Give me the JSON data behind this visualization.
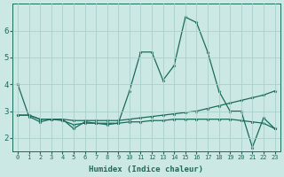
{
  "xlabel": "Humidex (Indice chaleur)",
  "background_color": "#cce8e4",
  "grid_color": "#aacfcb",
  "line_color": "#1a6b5a",
  "x": [
    0,
    1,
    2,
    3,
    4,
    5,
    6,
    7,
    8,
    9,
    10,
    11,
    12,
    13,
    14,
    15,
    16,
    17,
    18,
    19,
    20,
    21,
    22,
    23
  ],
  "series": [
    [
      4.0,
      2.8,
      2.6,
      2.7,
      2.7,
      2.35,
      2.6,
      2.55,
      2.5,
      2.55,
      3.75,
      5.2,
      5.2,
      4.15,
      4.7,
      6.5,
      6.3,
      5.2,
      3.75,
      3.0,
      3.0,
      1.65,
      2.75,
      2.35
    ],
    [
      2.85,
      2.85,
      2.7,
      2.7,
      2.7,
      2.65,
      2.65,
      2.65,
      2.65,
      2.65,
      2.7,
      2.75,
      2.8,
      2.85,
      2.9,
      2.95,
      3.0,
      3.1,
      3.2,
      3.3,
      3.4,
      3.5,
      3.6,
      3.75
    ],
    [
      2.85,
      2.85,
      2.7,
      2.7,
      2.65,
      2.5,
      2.55,
      2.55,
      2.55,
      2.55,
      2.6,
      2.6,
      2.65,
      2.65,
      2.7,
      2.7,
      2.7,
      2.7,
      2.7,
      2.7,
      2.65,
      2.6,
      2.55,
      2.35
    ]
  ],
  "xlim": [
    -0.5,
    23.5
  ],
  "ylim": [
    1.5,
    7.0
  ],
  "yticks": [
    2,
    3,
    4,
    5,
    6
  ],
  "xticks": [
    0,
    1,
    2,
    3,
    4,
    5,
    6,
    7,
    8,
    9,
    10,
    11,
    12,
    13,
    14,
    15,
    16,
    17,
    18,
    19,
    20,
    21,
    22,
    23
  ],
  "markersize": 2.5,
  "linewidth": 0.9,
  "xlabel_fontsize": 6.5,
  "tick_fontsize_x": 5.0,
  "tick_fontsize_y": 6.5
}
